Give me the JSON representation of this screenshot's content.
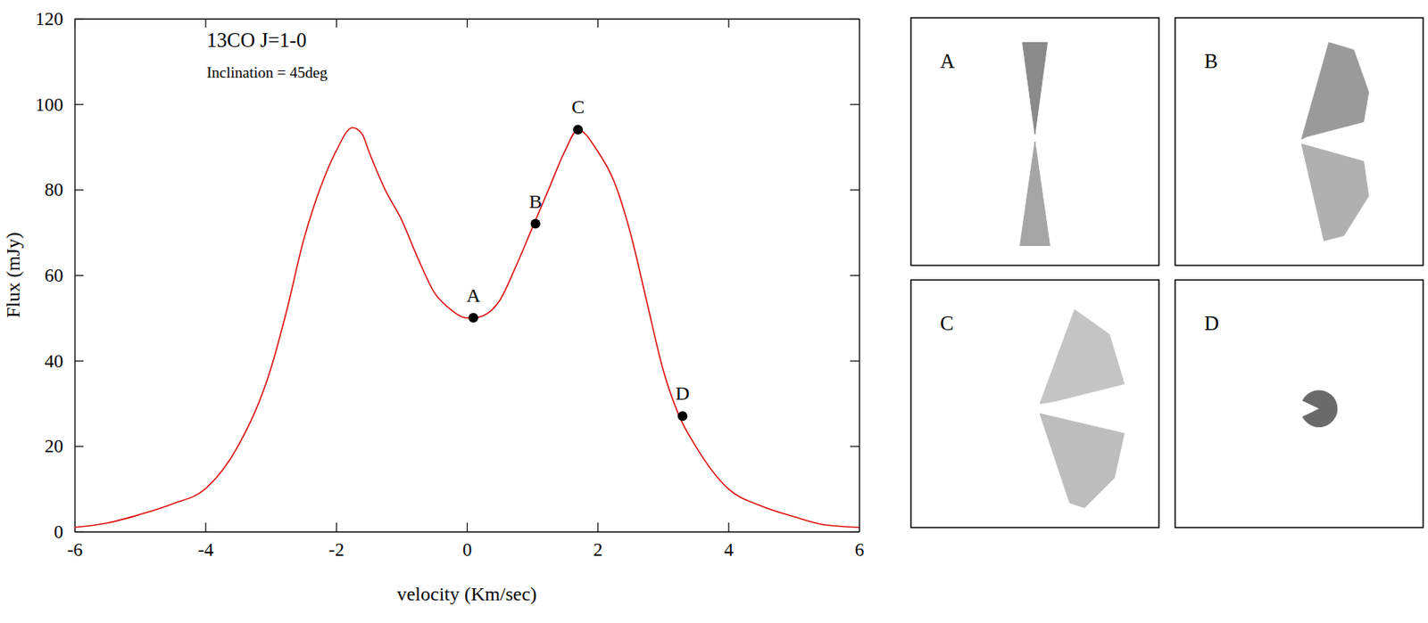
{
  "chart_data": {
    "type": "line",
    "title": "13CO J=1-0",
    "subtitle": "Inclination = 45deg",
    "x_label": "velocity (Km/sec)",
    "y_label": "Flux (mJy)",
    "color": "#dd1111",
    "x": [
      -6,
      -5.5,
      -5,
      -4.5,
      -4,
      -3.5,
      -3,
      -2.75,
      -2.5,
      -2.25,
      -2,
      -1.75,
      -1.6,
      -1.5,
      -1.25,
      -1,
      -0.75,
      -0.5,
      -0.25,
      0,
      0.1,
      0.25,
      0.5,
      0.75,
      1,
      1.25,
      1.5,
      1.7,
      2,
      2.25,
      2.5,
      2.75,
      3,
      3.25,
      3.5,
      4,
      4.5,
      5,
      5.5,
      6
    ],
    "values": [
      1,
      2,
      4,
      6.5,
      10,
      20,
      38,
      52,
      68,
      80,
      89,
      94.5,
      93,
      89,
      80,
      73,
      64,
      56,
      52,
      50,
      50,
      50.5,
      54,
      62,
      71,
      80,
      89,
      94,
      89,
      82,
      70,
      54,
      38,
      27,
      20,
      10,
      6,
      3.5,
      1.5,
      1
    ],
    "xlim": [
      -6,
      6
    ],
    "xticks": [
      -6,
      -4,
      -2,
      0,
      2,
      4,
      6
    ],
    "ylim": [
      0,
      120
    ],
    "yticks": [
      0,
      20,
      40,
      60,
      80,
      100,
      120
    ],
    "points": [
      {
        "label": "A",
        "x": 0.1,
        "y": 50
      },
      {
        "label": "B",
        "x": 1.05,
        "y": 72
      },
      {
        "label": "C",
        "x": 1.7,
        "y": 94
      },
      {
        "label": "D",
        "x": 3.3,
        "y": 27
      }
    ],
    "panels": [
      {
        "label": "A"
      },
      {
        "label": "B"
      },
      {
        "label": "C"
      },
      {
        "label": "D"
      }
    ]
  }
}
